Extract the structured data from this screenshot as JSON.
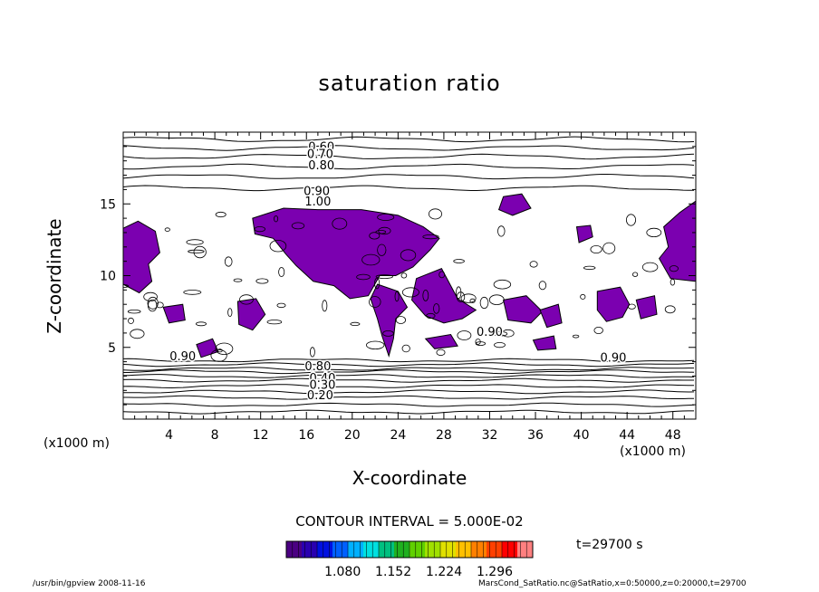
{
  "chart_data": {
    "type": "heatmap",
    "title": "saturation ratio",
    "xlabel": "X-coordinate",
    "ylabel": "Z-coordinate",
    "x_unit": "(x1000 m)",
    "xlim": [
      0,
      50
    ],
    "ylim": [
      0,
      20
    ],
    "x_ticks": [
      "4",
      "8",
      "12",
      "16",
      "20",
      "24",
      "28",
      "32",
      "36",
      "40",
      "44",
      "48"
    ],
    "x_tick_values": [
      4,
      8,
      12,
      16,
      20,
      24,
      28,
      32,
      36,
      40,
      44,
      48
    ],
    "y_ticks": [
      "5",
      "10",
      "15"
    ],
    "y_tick_values": [
      5,
      10,
      15
    ],
    "contour_interval": "CONTOUR INTERVAL = 5.000E-02",
    "contour_labels": [
      {
        "text": "0.60",
        "x": 17.3,
        "z": 18.7
      },
      {
        "text": "0.70",
        "x": 17.2,
        "z": 18.2
      },
      {
        "text": "0.80",
        "x": 17.3,
        "z": 17.4
      },
      {
        "text": "0.90",
        "x": 16.9,
        "z": 15.6
      },
      {
        "text": "1.00",
        "x": 17.0,
        "z": 14.9
      },
      {
        "text": "0.90",
        "x": 32.0,
        "z": 5.8
      },
      {
        "text": "0.90",
        "x": 42.8,
        "z": 4.0
      },
      {
        "text": "0.90",
        "x": 5.2,
        "z": 4.1
      },
      {
        "text": "0.80",
        "x": 17.0,
        "z": 3.4
      },
      {
        "text": "0.40",
        "x": 17.4,
        "z": 2.6
      },
      {
        "text": "0.30",
        "x": 17.4,
        "z": 2.1
      },
      {
        "text": "0.20",
        "x": 17.2,
        "z": 1.4
      }
    ],
    "supersaturated_regions": [
      {
        "name": "left-edge",
        "points": [
          [
            0,
            13.3
          ],
          [
            1.3,
            13.8
          ],
          [
            2.8,
            13.1
          ],
          [
            3.2,
            11.6
          ],
          [
            2.2,
            10.8
          ],
          [
            2.5,
            9.6
          ],
          [
            1.4,
            8.8
          ],
          [
            0,
            9.4
          ]
        ]
      },
      {
        "name": "central-large",
        "points": [
          [
            11.3,
            14.0
          ],
          [
            14.0,
            14.7
          ],
          [
            17.0,
            14.6
          ],
          [
            20.8,
            14.6
          ],
          [
            24.0,
            14.2
          ],
          [
            26.2,
            13.4
          ],
          [
            27.6,
            12.6
          ],
          [
            26.8,
            11.8
          ],
          [
            25.3,
            10.6
          ],
          [
            23.8,
            10.0
          ],
          [
            22.4,
            10.0
          ],
          [
            21.4,
            8.6
          ],
          [
            19.8,
            8.4
          ],
          [
            18.4,
            9.3
          ],
          [
            16.6,
            9.6
          ],
          [
            15.1,
            10.7
          ],
          [
            14.2,
            11.5
          ],
          [
            13.1,
            12.6
          ],
          [
            11.5,
            12.9
          ]
        ]
      },
      {
        "name": "left-lower",
        "points": [
          [
            3.5,
            7.8
          ],
          [
            5.2,
            8.0
          ],
          [
            5.4,
            6.9
          ],
          [
            4.0,
            6.7
          ]
        ]
      },
      {
        "name": "left-low-small",
        "points": [
          [
            6.4,
            5.2
          ],
          [
            7.8,
            5.6
          ],
          [
            8.3,
            4.7
          ],
          [
            6.8,
            4.3
          ]
        ]
      },
      {
        "name": "mid-left-lower",
        "points": [
          [
            10.0,
            8.2
          ],
          [
            11.6,
            8.4
          ],
          [
            12.4,
            7.3
          ],
          [
            11.3,
            6.2
          ],
          [
            10.1,
            6.6
          ]
        ]
      },
      {
        "name": "center-stripe",
        "points": [
          [
            22.2,
            9.4
          ],
          [
            24.0,
            8.9
          ],
          [
            24.8,
            7.8
          ],
          [
            23.8,
            7.0
          ],
          [
            23.6,
            5.6
          ],
          [
            23.2,
            4.4
          ],
          [
            22.6,
            5.8
          ],
          [
            22.2,
            7.0
          ],
          [
            21.6,
            8.4
          ]
        ]
      },
      {
        "name": "right-of-center",
        "points": [
          [
            25.6,
            9.8
          ],
          [
            27.8,
            10.5
          ],
          [
            29.2,
            8.4
          ],
          [
            30.8,
            7.6
          ],
          [
            29.6,
            7.0
          ],
          [
            28.0,
            6.7
          ],
          [
            26.4,
            7.2
          ],
          [
            25.2,
            8.3
          ]
        ]
      },
      {
        "name": "center-low",
        "points": [
          [
            26.4,
            5.6
          ],
          [
            28.6,
            5.9
          ],
          [
            29.2,
            5.1
          ],
          [
            27.2,
            4.9
          ]
        ]
      },
      {
        "name": "right-top",
        "points": [
          [
            33.2,
            15.5
          ],
          [
            34.8,
            15.7
          ],
          [
            35.6,
            14.7
          ],
          [
            34.0,
            14.2
          ],
          [
            32.8,
            14.6
          ]
        ]
      },
      {
        "name": "right-center",
        "points": [
          [
            33.2,
            8.3
          ],
          [
            35.2,
            8.6
          ],
          [
            36.6,
            7.5
          ],
          [
            35.6,
            6.7
          ],
          [
            33.6,
            6.9
          ]
        ]
      },
      {
        "name": "right-mid-low",
        "points": [
          [
            36.4,
            7.6
          ],
          [
            38.0,
            8.0
          ],
          [
            38.3,
            6.7
          ],
          [
            37.0,
            6.4
          ]
        ]
      },
      {
        "name": "right-small-top",
        "points": [
          [
            39.6,
            13.4
          ],
          [
            40.8,
            13.5
          ],
          [
            41.0,
            12.7
          ],
          [
            39.8,
            12.3
          ]
        ]
      },
      {
        "name": "right-lower",
        "points": [
          [
            41.4,
            8.9
          ],
          [
            43.4,
            9.2
          ],
          [
            44.2,
            8.0
          ],
          [
            43.6,
            7.1
          ],
          [
            42.2,
            6.8
          ],
          [
            41.4,
            7.6
          ]
        ]
      },
      {
        "name": "far-right",
        "points": [
          [
            50,
            15.2
          ],
          [
            48.6,
            14.4
          ],
          [
            47.2,
            13.4
          ],
          [
            47.6,
            12.0
          ],
          [
            46.8,
            11.2
          ],
          [
            47.8,
            9.8
          ],
          [
            50,
            9.6
          ]
        ]
      },
      {
        "name": "far-right-low",
        "points": [
          [
            44.8,
            8.3
          ],
          [
            46.4,
            8.6
          ],
          [
            46.6,
            7.3
          ],
          [
            45.2,
            7.0
          ]
        ]
      },
      {
        "name": "right-bottom-small",
        "points": [
          [
            35.8,
            5.5
          ],
          [
            37.6,
            5.8
          ],
          [
            37.8,
            4.9
          ],
          [
            36.2,
            4.8
          ]
        ]
      }
    ],
    "contour_bands": [
      {
        "z": 19.5
      },
      {
        "z": 18.9
      },
      {
        "z": 18.3
      },
      {
        "z": 17.6
      },
      {
        "z": 16.9
      },
      {
        "z": 16.1
      },
      {
        "z": 4.1
      },
      {
        "z": 3.8
      },
      {
        "z": 3.5
      },
      {
        "z": 3.3
      },
      {
        "z": 3.0
      },
      {
        "z": 2.7
      },
      {
        "z": 2.3
      },
      {
        "z": 1.9
      },
      {
        "z": 1.5
      },
      {
        "z": 1.0
      },
      {
        "z": 0.5
      }
    ],
    "colorbar": {
      "labels": [
        "1.080",
        "1.152",
        "1.224",
        "1.296"
      ],
      "values": [
        1.08,
        1.152,
        1.224,
        1.296
      ],
      "min": 1.0,
      "max": 1.35,
      "colors": [
        "#4b0082",
        "#2a00b0",
        "#0010e0",
        "#0060ff",
        "#00b0ff",
        "#00e0e0",
        "#00c080",
        "#20b020",
        "#60d000",
        "#a0e000",
        "#e0e000",
        "#ffc000",
        "#ff8000",
        "#ff4000",
        "#ff0000",
        "#ff8080"
      ]
    },
    "fill_color": "#7b00b0",
    "time": "t=29700 s"
  },
  "footer": {
    "left": "/usr/bin/gpview   2008-11-16",
    "right": "MarsCond_SatRatio.nc@SatRatio,x=0:50000,z=0:20000,t=29700"
  }
}
